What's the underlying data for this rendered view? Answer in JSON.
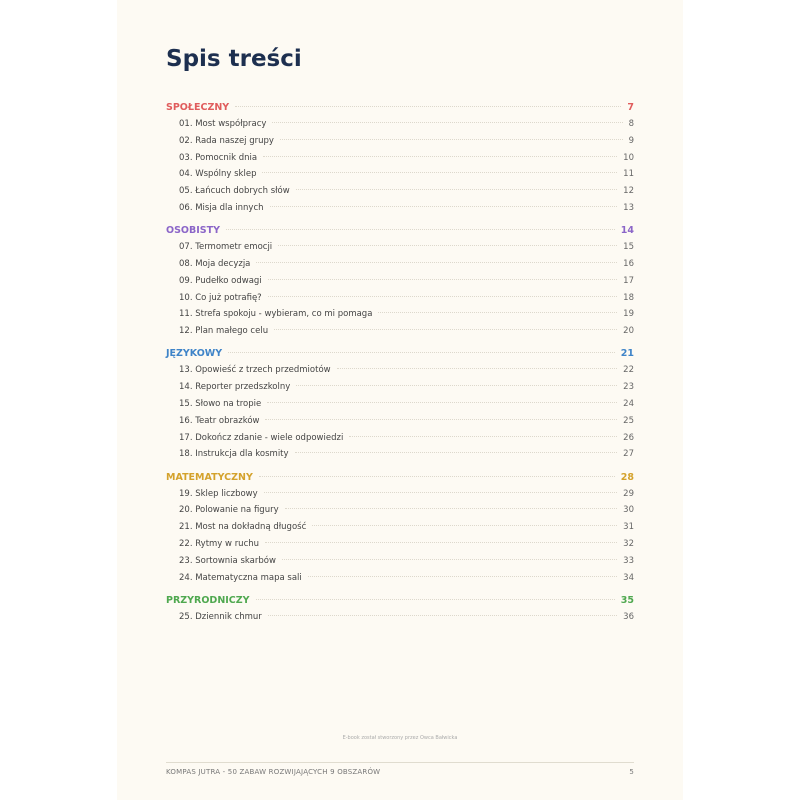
{
  "title": "Spis treści",
  "sections": [
    {
      "name": "SPOŁECZNY",
      "page": "7",
      "color": "#e05c5c",
      "items": [
        {
          "label": "01. Most współpracy",
          "page": "8"
        },
        {
          "label": "02. Rada naszej grupy",
          "page": "9"
        },
        {
          "label": "03. Pomocnik dnia",
          "page": "10"
        },
        {
          "label": "04. Wspólny sklep",
          "page": "11"
        },
        {
          "label": "05. Łańcuch dobrych słów",
          "page": "12"
        },
        {
          "label": "06. Misja dla innych",
          "page": "13"
        }
      ]
    },
    {
      "name": "OSOBISTY",
      "page": "14",
      "color": "#8b65c8",
      "items": [
        {
          "label": "07. Termometr emocji",
          "page": "15"
        },
        {
          "label": "08. Moja decyzja",
          "page": "16"
        },
        {
          "label": "09. Pudełko odwagi",
          "page": "17"
        },
        {
          "label": "10. Co już potrafię?",
          "page": "18"
        },
        {
          "label": "11. Strefa spokoju - wybieram, co mi pomaga",
          "page": "19"
        },
        {
          "label": "12. Plan małego celu",
          "page": "20"
        }
      ]
    },
    {
      "name": "JĘZYKOWY",
      "page": "21",
      "color": "#3f84c8",
      "items": [
        {
          "label": "13. Opowieść z trzech przedmiotów",
          "page": "22"
        },
        {
          "label": "14. Reporter przedszkolny",
          "page": "23"
        },
        {
          "label": "15. Słowo na tropie",
          "page": "24"
        },
        {
          "label": "16. Teatr obrazków",
          "page": "25"
        },
        {
          "label": "17. Dokończ zdanie - wiele odpowiedzi",
          "page": "26"
        },
        {
          "label": "18. Instrukcja dla kosmity",
          "page": "27"
        }
      ]
    },
    {
      "name": "MATEMATYCZNY",
      "page": "28",
      "color": "#d4a22c",
      "items": [
        {
          "label": "19. Sklep liczbowy",
          "page": "29"
        },
        {
          "label": "20. Polowanie na figury",
          "page": "30"
        },
        {
          "label": "21. Most na dokładną długość",
          "page": "31"
        },
        {
          "label": "22. Rytmy w ruchu",
          "page": "32"
        },
        {
          "label": "23. Sortownia skarbów",
          "page": "33"
        },
        {
          "label": "24. Matematyczna mapa sali",
          "page": "34"
        }
      ]
    },
    {
      "name": "PRZYRODNICZY",
      "page": "35",
      "color": "#4fa84f",
      "items": [
        {
          "label": "25. Dziennik chmur",
          "page": "36"
        }
      ]
    }
  ],
  "note": "E-book został stworzony przez Owca Bałwicka",
  "footer": {
    "text": "KOMPAS JUTRA - 50 ZABAW ROZWIJAJĄCYCH 9 OBSZARÓW",
    "page": "5"
  }
}
